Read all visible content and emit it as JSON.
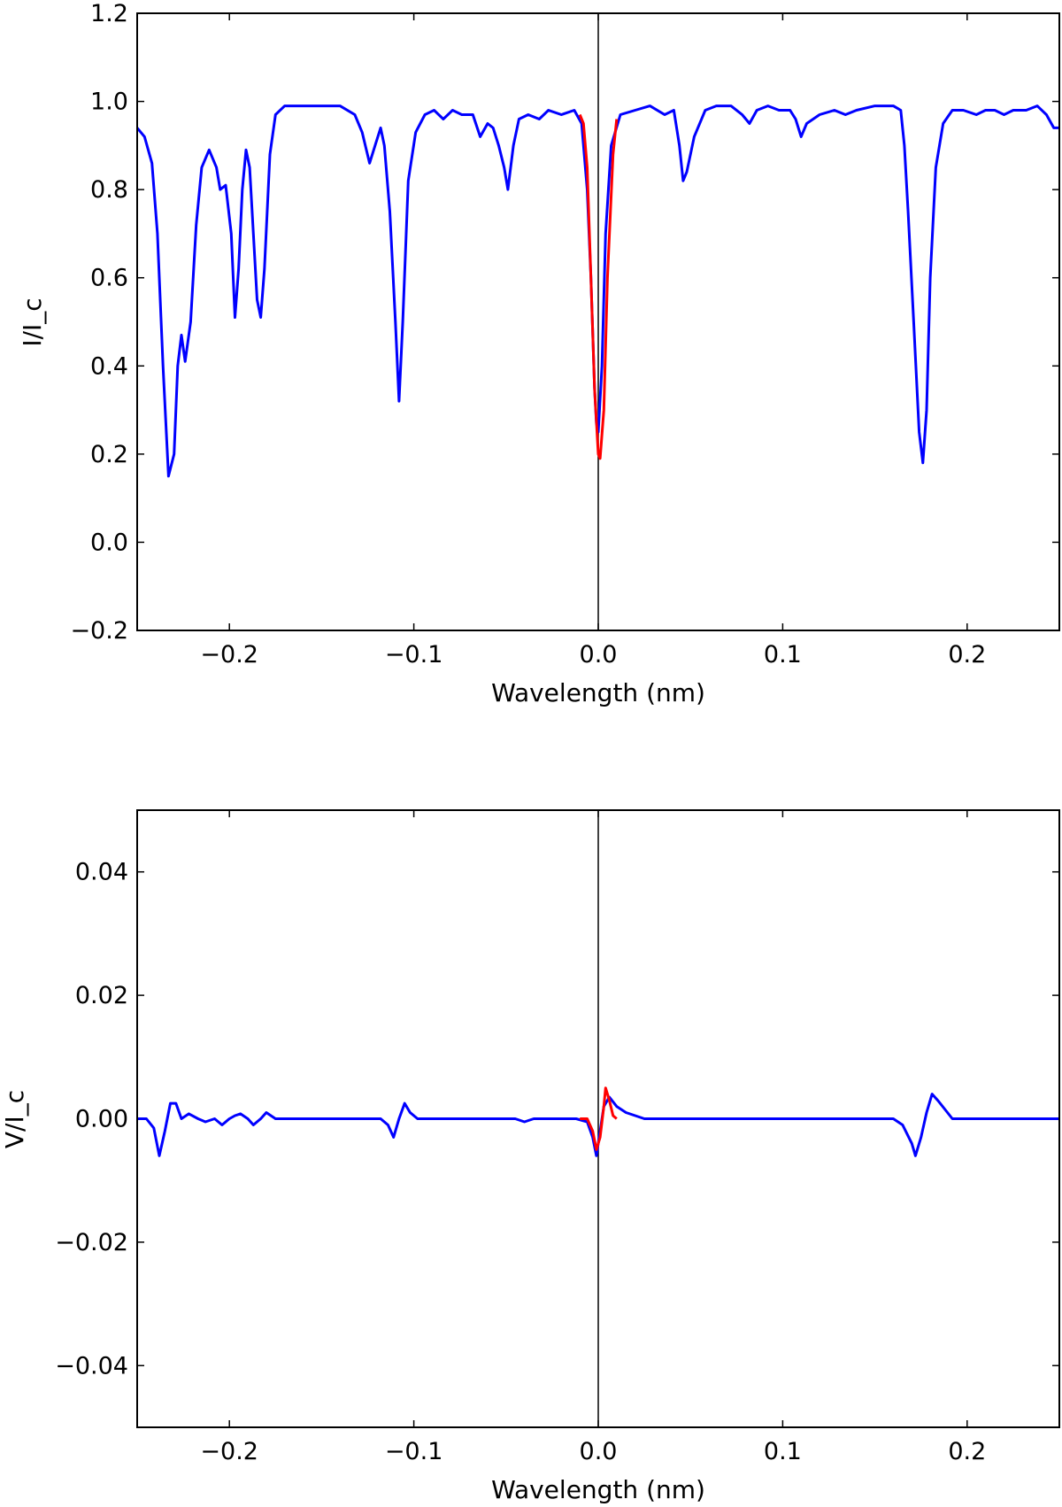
{
  "chart_data": [
    {
      "type": "line",
      "xlabel": "Wavelength (nm)",
      "ylabel": "I/I_c",
      "xlim": [
        -0.25,
        0.25
      ],
      "ylim": [
        -0.2,
        1.2
      ],
      "xticks": [
        -0.2,
        -0.1,
        0.0,
        0.1,
        0.2
      ],
      "xtick_labels": [
        "−0.2",
        "−0.1",
        "0.0",
        "0.1",
        "0.2"
      ],
      "yticks": [
        -0.2,
        0.0,
        0.2,
        0.4,
        0.6,
        0.8,
        1.0,
        1.2
      ],
      "ytick_labels": [
        "−0.2",
        "0.0",
        "0.2",
        "0.4",
        "0.6",
        "0.8",
        "1.0",
        "1.2"
      ],
      "vline_x": 0.0,
      "series": [
        {
          "color": "#0000ff",
          "points": [
            [
              -0.25,
              0.94
            ],
            [
              -0.246,
              0.92
            ],
            [
              -0.242,
              0.86
            ],
            [
              -0.239,
              0.7
            ],
            [
              -0.236,
              0.4
            ],
            [
              -0.233,
              0.15
            ],
            [
              -0.23,
              0.2
            ],
            [
              -0.228,
              0.4
            ],
            [
              -0.226,
              0.47
            ],
            [
              -0.224,
              0.41
            ],
            [
              -0.221,
              0.5
            ],
            [
              -0.218,
              0.72
            ],
            [
              -0.215,
              0.85
            ],
            [
              -0.211,
              0.89
            ],
            [
              -0.207,
              0.85
            ],
            [
              -0.205,
              0.8
            ],
            [
              -0.202,
              0.81
            ],
            [
              -0.199,
              0.7
            ],
            [
              -0.197,
              0.51
            ],
            [
              -0.195,
              0.62
            ],
            [
              -0.193,
              0.8
            ],
            [
              -0.191,
              0.89
            ],
            [
              -0.189,
              0.85
            ],
            [
              -0.187,
              0.7
            ],
            [
              -0.185,
              0.55
            ],
            [
              -0.183,
              0.51
            ],
            [
              -0.181,
              0.62
            ],
            [
              -0.178,
              0.88
            ],
            [
              -0.175,
              0.97
            ],
            [
              -0.17,
              0.99
            ],
            [
              -0.16,
              0.99
            ],
            [
              -0.15,
              0.99
            ],
            [
              -0.14,
              0.99
            ],
            [
              -0.132,
              0.97
            ],
            [
              -0.128,
              0.93
            ],
            [
              -0.124,
              0.86
            ],
            [
              -0.121,
              0.9
            ],
            [
              -0.118,
              0.94
            ],
            [
              -0.116,
              0.9
            ],
            [
              -0.113,
              0.75
            ],
            [
              -0.11,
              0.5
            ],
            [
              -0.108,
              0.32
            ],
            [
              -0.106,
              0.5
            ],
            [
              -0.103,
              0.82
            ],
            [
              -0.099,
              0.93
            ],
            [
              -0.094,
              0.97
            ],
            [
              -0.089,
              0.98
            ],
            [
              -0.084,
              0.96
            ],
            [
              -0.079,
              0.98
            ],
            [
              -0.074,
              0.97
            ],
            [
              -0.068,
              0.97
            ],
            [
              -0.064,
              0.92
            ],
            [
              -0.06,
              0.95
            ],
            [
              -0.057,
              0.94
            ],
            [
              -0.054,
              0.9
            ],
            [
              -0.051,
              0.85
            ],
            [
              -0.049,
              0.8
            ],
            [
              -0.046,
              0.9
            ],
            [
              -0.043,
              0.96
            ],
            [
              -0.038,
              0.97
            ],
            [
              -0.032,
              0.96
            ],
            [
              -0.027,
              0.98
            ],
            [
              -0.02,
              0.97
            ],
            [
              -0.013,
              0.98
            ],
            [
              -0.009,
              0.95
            ],
            [
              -0.006,
              0.8
            ],
            [
              -0.004,
              0.6
            ],
            [
              -0.002,
              0.35
            ],
            [
              -0.001,
              0.27
            ],
            [
              0.0,
              0.25
            ],
            [
              0.002,
              0.4
            ],
            [
              0.004,
              0.7
            ],
            [
              0.007,
              0.9
            ],
            [
              0.012,
              0.97
            ],
            [
              0.02,
              0.98
            ],
            [
              0.028,
              0.99
            ],
            [
              0.036,
              0.97
            ],
            [
              0.041,
              0.98
            ],
            [
              0.044,
              0.9
            ],
            [
              0.046,
              0.82
            ],
            [
              0.048,
              0.84
            ],
            [
              0.052,
              0.92
            ],
            [
              0.058,
              0.98
            ],
            [
              0.064,
              0.99
            ],
            [
              0.072,
              0.99
            ],
            [
              0.078,
              0.97
            ],
            [
              0.082,
              0.95
            ],
            [
              0.086,
              0.98
            ],
            [
              0.092,
              0.99
            ],
            [
              0.098,
              0.98
            ],
            [
              0.104,
              0.98
            ],
            [
              0.107,
              0.96
            ],
            [
              0.11,
              0.92
            ],
            [
              0.113,
              0.95
            ],
            [
              0.12,
              0.97
            ],
            [
              0.128,
              0.98
            ],
            [
              0.134,
              0.97
            ],
            [
              0.14,
              0.98
            ],
            [
              0.15,
              0.99
            ],
            [
              0.16,
              0.99
            ],
            [
              0.164,
              0.98
            ],
            [
              0.166,
              0.9
            ],
            [
              0.168,
              0.75
            ],
            [
              0.171,
              0.5
            ],
            [
              0.174,
              0.25
            ],
            [
              0.176,
              0.18
            ],
            [
              0.178,
              0.3
            ],
            [
              0.18,
              0.6
            ],
            [
              0.183,
              0.85
            ],
            [
              0.187,
              0.95
            ],
            [
              0.192,
              0.98
            ],
            [
              0.198,
              0.98
            ],
            [
              0.205,
              0.97
            ],
            [
              0.21,
              0.98
            ],
            [
              0.215,
              0.98
            ],
            [
              0.22,
              0.97
            ],
            [
              0.225,
              0.98
            ],
            [
              0.232,
              0.98
            ],
            [
              0.238,
              0.99
            ],
            [
              0.243,
              0.97
            ],
            [
              0.247,
              0.94
            ],
            [
              0.25,
              0.94
            ]
          ]
        },
        {
          "color": "#ff0000",
          "points": [
            [
              -0.01,
              0.97
            ],
            [
              -0.008,
              0.95
            ],
            [
              -0.006,
              0.85
            ],
            [
              -0.004,
              0.6
            ],
            [
              -0.002,
              0.35
            ],
            [
              0.0,
              0.2
            ],
            [
              0.001,
              0.19
            ],
            [
              0.003,
              0.3
            ],
            [
              0.005,
              0.6
            ],
            [
              0.008,
              0.88
            ],
            [
              0.01,
              0.96
            ]
          ]
        }
      ]
    },
    {
      "type": "line",
      "xlabel": "Wavelength (nm)",
      "ylabel": "V/I_c",
      "xlim": [
        -0.25,
        0.25
      ],
      "ylim": [
        -0.05,
        0.05
      ],
      "xticks": [
        -0.2,
        -0.1,
        0.0,
        0.1,
        0.2
      ],
      "xtick_labels": [
        "−0.2",
        "−0.1",
        "0.0",
        "0.1",
        "0.2"
      ],
      "yticks": [
        -0.04,
        -0.02,
        0.0,
        0.02,
        0.04
      ],
      "ytick_labels": [
        "−0.04",
        "−0.02",
        "0.00",
        "0.02",
        "0.04"
      ],
      "vline_x": 0.0,
      "series": [
        {
          "color": "#0000ff",
          "points": [
            [
              -0.25,
              0.0
            ],
            [
              -0.245,
              0.0
            ],
            [
              -0.241,
              -0.0015
            ],
            [
              -0.238,
              -0.006
            ],
            [
              -0.235,
              -0.002
            ],
            [
              -0.232,
              0.0025
            ],
            [
              -0.229,
              0.0025
            ],
            [
              -0.226,
              0.0
            ],
            [
              -0.222,
              0.0008
            ],
            [
              -0.217,
              0.0
            ],
            [
              -0.213,
              -0.0005
            ],
            [
              -0.208,
              0.0
            ],
            [
              -0.204,
              -0.001
            ],
            [
              -0.2,
              0.0
            ],
            [
              -0.197,
              0.0005
            ],
            [
              -0.194,
              0.0008
            ],
            [
              -0.19,
              0.0
            ],
            [
              -0.187,
              -0.001
            ],
            [
              -0.183,
              0.0
            ],
            [
              -0.18,
              0.001
            ],
            [
              -0.175,
              0.0
            ],
            [
              -0.165,
              0.0
            ],
            [
              -0.155,
              0.0
            ],
            [
              -0.14,
              0.0
            ],
            [
              -0.125,
              0.0
            ],
            [
              -0.118,
              0.0
            ],
            [
              -0.114,
              -0.001
            ],
            [
              -0.111,
              -0.003
            ],
            [
              -0.108,
              0.0
            ],
            [
              -0.105,
              0.0025
            ],
            [
              -0.102,
              0.001
            ],
            [
              -0.098,
              0.0
            ],
            [
              -0.09,
              0.0
            ],
            [
              -0.075,
              0.0
            ],
            [
              -0.06,
              0.0
            ],
            [
              -0.05,
              0.0
            ],
            [
              -0.045,
              0.0
            ],
            [
              -0.04,
              -0.0005
            ],
            [
              -0.035,
              0.0
            ],
            [
              -0.02,
              0.0
            ],
            [
              -0.012,
              0.0
            ],
            [
              -0.006,
              -0.0005
            ],
            [
              -0.003,
              -0.003
            ],
            [
              -0.001,
              -0.006
            ],
            [
              0.001,
              -0.002
            ],
            [
              0.003,
              0.002
            ],
            [
              0.006,
              0.0035
            ],
            [
              0.01,
              0.002
            ],
            [
              0.015,
              0.001
            ],
            [
              0.02,
              0.0005
            ],
            [
              0.025,
              0.0
            ],
            [
              0.035,
              0.0
            ],
            [
              0.05,
              0.0
            ],
            [
              0.08,
              0.0
            ],
            [
              0.11,
              0.0
            ],
            [
              0.14,
              0.0
            ],
            [
              0.155,
              0.0
            ],
            [
              0.16,
              0.0
            ],
            [
              0.165,
              -0.001
            ],
            [
              0.17,
              -0.004
            ],
            [
              0.172,
              -0.006
            ],
            [
              0.175,
              -0.003
            ],
            [
              0.178,
              0.001
            ],
            [
              0.181,
              0.004
            ],
            [
              0.184,
              0.003
            ],
            [
              0.188,
              0.0015
            ],
            [
              0.192,
              0.0
            ],
            [
              0.2,
              0.0
            ],
            [
              0.215,
              0.0
            ],
            [
              0.23,
              0.0
            ],
            [
              0.25,
              0.0
            ]
          ]
        },
        {
          "color": "#ff0000",
          "points": [
            [
              -0.01,
              0.0
            ],
            [
              -0.006,
              0.0
            ],
            [
              -0.003,
              -0.002
            ],
            [
              -0.001,
              -0.005
            ],
            [
              0.001,
              -0.003
            ],
            [
              0.003,
              0.002
            ],
            [
              0.004,
              0.005
            ],
            [
              0.006,
              0.003
            ],
            [
              0.008,
              0.0005
            ],
            [
              0.01,
              0.0
            ]
          ]
        }
      ]
    }
  ]
}
